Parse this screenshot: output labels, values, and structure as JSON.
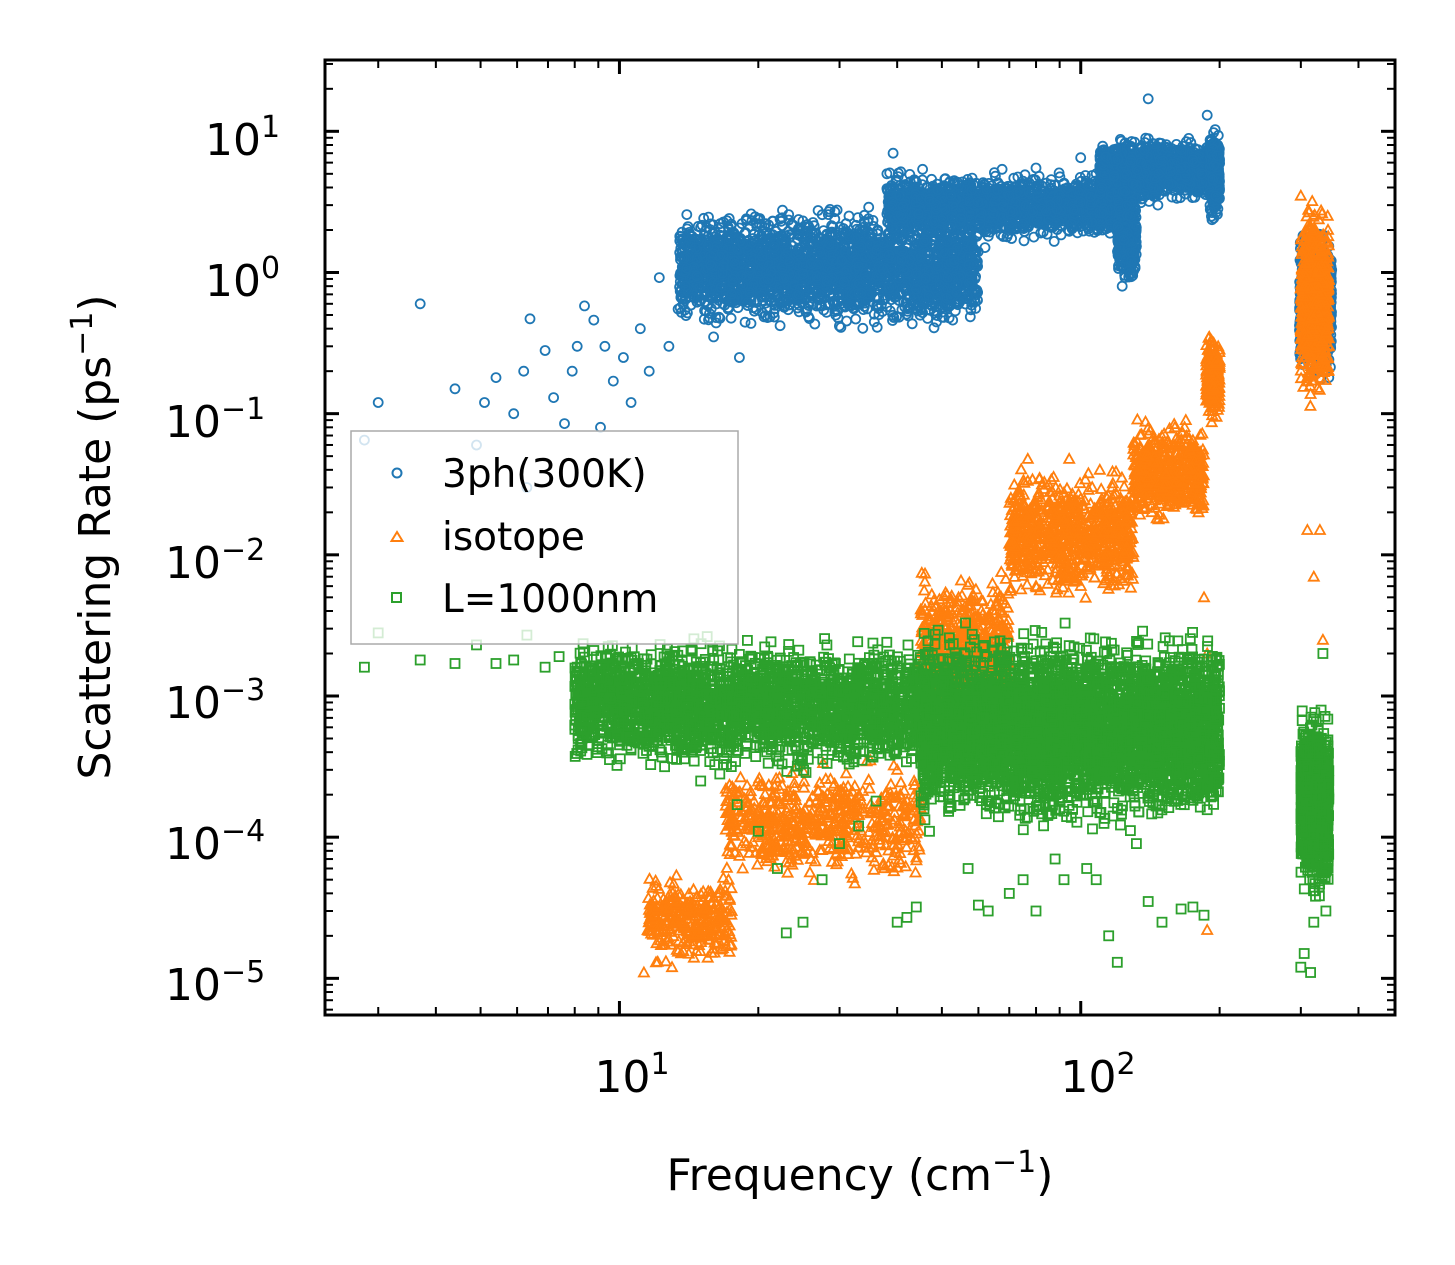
{
  "chart_data": {
    "type": "scatter",
    "xscale": "log",
    "yscale": "log",
    "xlabel": "Frequency (cm",
    "xlabel_sup": "−1",
    "xlabel_end": ")",
    "ylabel": "Scattering Rate (ps",
    "ylabel_sup": "−1",
    "ylabel_end": ")",
    "xlim": [
      2.3,
      480
    ],
    "ylim": [
      5.5e-06,
      32
    ],
    "x_ticks": [
      {
        "base": "10",
        "exp": "1"
      },
      {
        "base": "10",
        "exp": "2"
      }
    ],
    "y_ticks": [
      {
        "base": "10",
        "exp": "1"
      },
      {
        "base": "10",
        "exp": "0"
      },
      {
        "base": "10",
        "exp": "−1"
      },
      {
        "base": "10",
        "exp": "−2"
      },
      {
        "base": "10",
        "exp": "−3"
      },
      {
        "base": "10",
        "exp": "−4"
      },
      {
        "base": "10",
        "exp": "−5"
      }
    ],
    "legend_position": "center-left",
    "series": [
      {
        "name": "3ph(300K)",
        "marker": "circle",
        "color": "#1f77b4",
        "points": [
          [
            2.8,
            0.065
          ],
          [
            3.0,
            0.12
          ],
          [
            3.7,
            0.6
          ],
          [
            4.4,
            0.15
          ],
          [
            4.9,
            0.06
          ],
          [
            5.1,
            0.12
          ],
          [
            5.4,
            0.18
          ],
          [
            5.9,
            0.1
          ],
          [
            6.2,
            0.2
          ],
          [
            6.3,
            0.03
          ],
          [
            6.4,
            0.47
          ],
          [
            6.9,
            0.28
          ],
          [
            7.2,
            0.13
          ],
          [
            7.6,
            0.085
          ],
          [
            7.9,
            0.2
          ],
          [
            8.1,
            0.3
          ],
          [
            8.4,
            0.58
          ],
          [
            8.8,
            0.46
          ],
          [
            9.1,
            0.08
          ],
          [
            9.3,
            0.3
          ],
          [
            9.7,
            0.17
          ],
          [
            10.2,
            0.25
          ],
          [
            10.6,
            0.12
          ],
          [
            11.1,
            0.4
          ],
          [
            11.6,
            0.2
          ],
          [
            12.2,
            0.92
          ],
          [
            12.8,
            0.3
          ],
          [
            13.4,
            0.55
          ],
          [
            13.9,
            0.8
          ],
          [
            14.6,
            1.5
          ],
          [
            15.3,
            0.62
          ],
          [
            16.0,
            0.35
          ],
          [
            16.8,
            1.1
          ],
          [
            17.5,
            0.7
          ],
          [
            18.2,
            0.25
          ],
          [
            18.5,
            1.6
          ],
          [
            19.3,
            2.6
          ],
          [
            19.8,
            0.55
          ],
          [
            20.4,
            1.3
          ],
          [
            21.0,
            0.9
          ],
          [
            21.5,
            2.3
          ],
          [
            22.3,
            0.42
          ],
          [
            23.4,
            1.2
          ],
          [
            24.5,
            0.7
          ],
          [
            26.0,
            2.0
          ],
          [
            27.2,
            1.4
          ],
          [
            28.6,
            2.8
          ],
          [
            30.0,
            0.7
          ],
          [
            31.5,
            1.8
          ],
          [
            33.0,
            1.1
          ],
          [
            34.7,
            2.9
          ],
          [
            36.3,
            2.0
          ],
          [
            38.0,
            5.0
          ],
          [
            39.2,
            7.0
          ],
          [
            40.5,
            3.5
          ],
          [
            42.5,
            1.9
          ],
          [
            44.5,
            2.6
          ],
          [
            47.0,
            3.3
          ],
          [
            49.5,
            2.0
          ],
          [
            52.0,
            4.0
          ],
          [
            55.0,
            2.4
          ],
          [
            58.0,
            3.8
          ],
          [
            62.0,
            1.5
          ],
          [
            65.0,
            5.1
          ],
          [
            70.0,
            3.5
          ],
          [
            75.0,
            2.2
          ],
          [
            80.0,
            5.5
          ],
          [
            86.0,
            3.0
          ],
          [
            92.0,
            4.3
          ],
          [
            100.0,
            6.5
          ],
          [
            108.0,
            5.0
          ],
          [
            118.0,
            4.8
          ],
          [
            123.0,
            0.8
          ],
          [
            128.0,
            2.5
          ],
          [
            135.0,
            6.0
          ],
          [
            140.0,
            17.0
          ],
          [
            147.0,
            3.0
          ],
          [
            155.0,
            4.2
          ],
          [
            165.0,
            5.5
          ],
          [
            175.0,
            6.3
          ],
          [
            183.0,
            5.0
          ],
          [
            188.0,
            13.0
          ],
          [
            192.0,
            2.5
          ],
          [
            196.0,
            3.5
          ],
          [
            305.0,
            0.7
          ],
          [
            315.0,
            1.2
          ],
          [
            325.0,
            0.5
          ],
          [
            335.0,
            0.3
          ],
          [
            345.0,
            0.18
          ]
        ],
        "clusters": [
          {
            "x": [
              13.5,
              60
            ],
            "y0": 0.35,
            "y1": 3.2,
            "n": 2600
          },
          {
            "x": [
              38,
              125
            ],
            "y0": 1.6,
            "y1": 5.5,
            "n": 1800
          },
          {
            "x": [
              110,
              200
            ],
            "y0": 3.0,
            "y1": 9.5,
            "n": 1400
          },
          {
            "x": [
              120,
              132
            ],
            "y0": 0.75,
            "y1": 5.0,
            "n": 300
          },
          {
            "x": [
              190,
              200
            ],
            "y0": 2.0,
            "y1": 12.0,
            "n": 250
          },
          {
            "x": [
              298,
              350
            ],
            "y0": 0.15,
            "y1": 2.5,
            "n": 700
          }
        ]
      },
      {
        "name": "isotope",
        "marker": "triangle",
        "color": "#ff7f0e",
        "points": [
          [
            11.3,
            1.1e-05
          ],
          [
            12.0,
            1.3e-05
          ],
          [
            13.0,
            1.2e-05
          ],
          [
            14.5,
            1.4e-05
          ],
          [
            16.0,
            2.3e-05
          ],
          [
            17.5,
            3e-05
          ],
          [
            18.5,
            6e-05
          ],
          [
            20.0,
            0.0001
          ],
          [
            22.0,
            8e-05
          ],
          [
            24.0,
            0.00016
          ],
          [
            26.0,
            7e-05
          ],
          [
            28.0,
            0.00011
          ],
          [
            32.0,
            0.00021
          ],
          [
            35.0,
            0.00035
          ],
          [
            40.0,
            0.0003
          ],
          [
            45.0,
            0.0005
          ],
          [
            55.0,
            0.001
          ],
          [
            60.0,
            0.0035
          ],
          [
            70.0,
            0.012
          ],
          [
            80.0,
            0.006
          ],
          [
            90.0,
            0.015
          ],
          [
            100.0,
            0.025
          ],
          [
            110.0,
            0.04
          ],
          [
            120.0,
            0.02
          ],
          [
            140.0,
            0.05
          ],
          [
            160.0,
            0.08
          ],
          [
            180.0,
            0.02
          ],
          [
            185.0,
            0.005
          ],
          [
            188.0,
            0.002
          ],
          [
            190.0,
            0.35
          ],
          [
            195.0,
            0.12
          ],
          [
            188.0,
            2.2e-05
          ],
          [
            300.0,
            3.5
          ],
          [
            310.0,
            0.015
          ],
          [
            320.0,
            0.007
          ],
          [
            330.0,
            0.015
          ],
          [
            335.0,
            0.0025
          ]
        ],
        "clusters": [
          {
            "x": [
              11.5,
              17.5
            ],
            "y0": 1.1e-05,
            "y1": 6e-05,
            "n": 300
          },
          {
            "x": [
              17,
              45
            ],
            "y0": 4e-05,
            "y1": 0.0004,
            "n": 600
          },
          {
            "x": [
              45,
              70
            ],
            "y0": 0.0005,
            "y1": 0.009,
            "n": 600
          },
          {
            "x": [
              70,
              130
            ],
            "y0": 0.004,
            "y1": 0.05,
            "n": 800
          },
          {
            "x": [
              130,
              185
            ],
            "y0": 0.015,
            "y1": 0.1,
            "n": 500
          },
          {
            "x": [
              187,
              200
            ],
            "y0": 0.08,
            "y1": 0.4,
            "n": 200
          },
          {
            "x": [
              300,
              345
            ],
            "y0": 0.1,
            "y1": 4.0,
            "n": 700
          }
        ]
      },
      {
        "name": "L=1000nm",
        "marker": "square",
        "color": "#2ca02c",
        "points": [
          [
            2.8,
            0.0016
          ],
          [
            3.0,
            0.0028
          ],
          [
            3.7,
            0.0018
          ],
          [
            4.4,
            0.0017
          ],
          [
            4.9,
            0.0023
          ],
          [
            5.4,
            0.0017
          ],
          [
            5.9,
            0.0018
          ],
          [
            6.3,
            0.0027
          ],
          [
            6.9,
            0.0016
          ],
          [
            7.4,
            0.0019
          ],
          [
            8.1,
            0.0016
          ],
          [
            8.8,
            0.0021
          ],
          [
            9.4,
            0.0019
          ],
          [
            10.1,
            0.0015
          ],
          [
            11.0,
            0.0017
          ],
          [
            12.3,
            0.0012
          ],
          [
            13.8,
            0.0004
          ],
          [
            15.0,
            0.00025
          ],
          [
            16.5,
            0.00028
          ],
          [
            18.0,
            0.00017
          ],
          [
            20.0,
            0.00011
          ],
          [
            22.0,
            6e-05
          ],
          [
            23.0,
            2.1e-05
          ],
          [
            25.0,
            2.5e-05
          ],
          [
            27.5,
            5e-05
          ],
          [
            30.0,
            9e-05
          ],
          [
            33.0,
            0.00012
          ],
          [
            36.0,
            0.00018
          ],
          [
            40.0,
            2.5e-05
          ],
          [
            42.0,
            2.7e-05
          ],
          [
            44.0,
            3.2e-05
          ],
          [
            47.0,
            0.00011
          ],
          [
            52.0,
            0.0002
          ],
          [
            57.0,
            6e-05
          ],
          [
            60.0,
            3.3e-05
          ],
          [
            63.0,
            3e-05
          ],
          [
            70.0,
            4e-05
          ],
          [
            75.0,
            5e-05
          ],
          [
            80.0,
            3e-05
          ],
          [
            88.0,
            7e-05
          ],
          [
            92.0,
            5e-05
          ],
          [
            103.0,
            6e-05
          ],
          [
            108.0,
            5e-05
          ],
          [
            115.0,
            2e-05
          ],
          [
            120.0,
            1.3e-05
          ],
          [
            132.0,
            9e-05
          ],
          [
            140.0,
            3.5e-05
          ],
          [
            150.0,
            2.5e-05
          ],
          [
            165.0,
            3.1e-05
          ],
          [
            175.0,
            3.2e-05
          ],
          [
            185.0,
            2.8e-05
          ],
          [
            300.0,
            1.2e-05
          ],
          [
            305.0,
            1.5e-05
          ],
          [
            315.0,
            1.1e-05
          ],
          [
            320.0,
            2.5e-05
          ],
          [
            335.0,
            0.002
          ],
          [
            340.0,
            3e-05
          ]
        ],
        "clusters": [
          {
            "x": [
              8,
              45
            ],
            "y0": 0.00025,
            "y1": 0.003,
            "n": 2500
          },
          {
            "x": [
              45,
              200
            ],
            "y0": 0.0001,
            "y1": 0.0035,
            "n": 4500
          },
          {
            "x": [
              300,
              345
            ],
            "y0": 3e-05,
            "y1": 0.001,
            "n": 900
          }
        ]
      }
    ]
  }
}
